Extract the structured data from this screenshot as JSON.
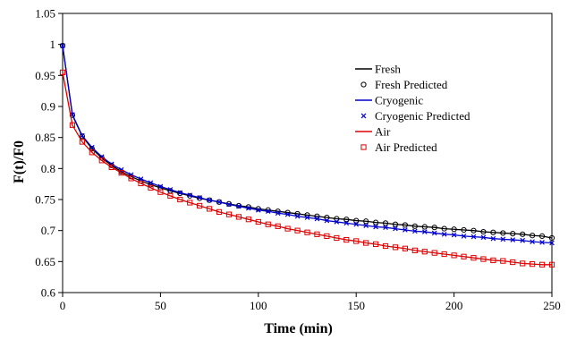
{
  "chart_data": {
    "type": "line",
    "title": "",
    "xlabel": "Time (min)",
    "ylabel": "F(t)/F0",
    "xlim": [
      0,
      250
    ],
    "ylim": [
      0.6,
      1.05
    ],
    "x_ticks": [
      0,
      50,
      100,
      150,
      200,
      250
    ],
    "y_ticks": [
      0.6,
      0.65,
      0.7,
      0.75,
      0.8,
      0.85,
      0.9,
      0.95,
      1.0,
      1.05
    ],
    "x_tick_labels": [
      "0",
      "50",
      "100",
      "150",
      "200",
      "250"
    ],
    "y_tick_labels": [
      "0.6",
      "0.65",
      "0.7",
      "0.75",
      "0.8",
      "0.85",
      "0.9",
      "0.95",
      "1",
      "1.05"
    ],
    "grid": false,
    "legend_position": "upper-right",
    "x": [
      0,
      5,
      10,
      15,
      20,
      25,
      30,
      35,
      40,
      45,
      50,
      55,
      60,
      65,
      70,
      75,
      80,
      85,
      90,
      95,
      100,
      105,
      110,
      115,
      120,
      125,
      130,
      135,
      140,
      145,
      150,
      155,
      160,
      165,
      170,
      175,
      180,
      185,
      190,
      195,
      200,
      205,
      210,
      215,
      220,
      225,
      230,
      235,
      240,
      245,
      250
    ],
    "series": [
      {
        "name": "Fresh",
        "style": "line",
        "color": "#000000",
        "values": [
          0.998,
          0.886,
          0.852,
          0.832,
          0.817,
          0.805,
          0.795,
          0.787,
          0.78,
          0.774,
          0.769,
          0.764,
          0.76,
          0.756,
          0.752,
          0.749,
          0.746,
          0.743,
          0.74,
          0.738,
          0.735,
          0.733,
          0.731,
          0.729,
          0.727,
          0.725,
          0.723,
          0.721,
          0.719,
          0.718,
          0.716,
          0.715,
          0.713,
          0.712,
          0.71,
          0.709,
          0.707,
          0.706,
          0.705,
          0.703,
          0.702,
          0.701,
          0.7,
          0.698,
          0.697,
          0.696,
          0.695,
          0.694,
          0.692,
          0.691,
          0.688
        ]
      },
      {
        "name": "Fresh Predicted",
        "style": "marker-circle",
        "color": "#000000",
        "values": [
          0.998,
          0.886,
          0.852,
          0.832,
          0.817,
          0.805,
          0.795,
          0.787,
          0.78,
          0.774,
          0.769,
          0.764,
          0.76,
          0.756,
          0.752,
          0.749,
          0.746,
          0.743,
          0.74,
          0.738,
          0.735,
          0.733,
          0.731,
          0.729,
          0.727,
          0.725,
          0.723,
          0.721,
          0.719,
          0.718,
          0.716,
          0.715,
          0.713,
          0.712,
          0.71,
          0.709,
          0.707,
          0.706,
          0.705,
          0.703,
          0.702,
          0.701,
          0.7,
          0.698,
          0.697,
          0.696,
          0.695,
          0.694,
          0.692,
          0.691,
          0.688
        ]
      },
      {
        "name": "Cryogenic",
        "style": "line",
        "color": "#0000cc",
        "values": [
          0.998,
          0.887,
          0.853,
          0.834,
          0.819,
          0.807,
          0.798,
          0.79,
          0.783,
          0.777,
          0.771,
          0.766,
          0.761,
          0.757,
          0.753,
          0.749,
          0.746,
          0.742,
          0.739,
          0.736,
          0.733,
          0.731,
          0.728,
          0.726,
          0.723,
          0.721,
          0.719,
          0.716,
          0.714,
          0.712,
          0.71,
          0.708,
          0.706,
          0.705,
          0.703,
          0.701,
          0.699,
          0.698,
          0.696,
          0.694,
          0.693,
          0.691,
          0.69,
          0.689,
          0.687,
          0.686,
          0.685,
          0.684,
          0.682,
          0.681,
          0.68
        ]
      },
      {
        "name": "Cryogenic Predicted",
        "style": "marker-x",
        "color": "#0000cc",
        "values": [
          0.998,
          0.887,
          0.853,
          0.834,
          0.819,
          0.807,
          0.798,
          0.79,
          0.783,
          0.777,
          0.771,
          0.766,
          0.761,
          0.757,
          0.753,
          0.749,
          0.746,
          0.742,
          0.739,
          0.736,
          0.733,
          0.731,
          0.728,
          0.726,
          0.723,
          0.721,
          0.719,
          0.716,
          0.714,
          0.712,
          0.71,
          0.708,
          0.706,
          0.705,
          0.703,
          0.701,
          0.699,
          0.698,
          0.696,
          0.694,
          0.693,
          0.691,
          0.69,
          0.689,
          0.687,
          0.686,
          0.685,
          0.684,
          0.682,
          0.681,
          0.68
        ]
      },
      {
        "name": "Air",
        "style": "line",
        "color": "#dd0000",
        "values": [
          0.955,
          0.87,
          0.843,
          0.826,
          0.813,
          0.802,
          0.793,
          0.784,
          0.776,
          0.769,
          0.762,
          0.756,
          0.75,
          0.745,
          0.74,
          0.735,
          0.73,
          0.726,
          0.722,
          0.718,
          0.714,
          0.71,
          0.707,
          0.703,
          0.7,
          0.697,
          0.694,
          0.691,
          0.688,
          0.685,
          0.683,
          0.68,
          0.678,
          0.675,
          0.673,
          0.671,
          0.668,
          0.666,
          0.664,
          0.662,
          0.66,
          0.658,
          0.656,
          0.654,
          0.652,
          0.651,
          0.649,
          0.647,
          0.646,
          0.645,
          0.645
        ]
      },
      {
        "name": "Air Predicted",
        "style": "marker-square",
        "color": "#dd0000",
        "values": [
          0.955,
          0.87,
          0.843,
          0.826,
          0.813,
          0.802,
          0.793,
          0.784,
          0.776,
          0.769,
          0.762,
          0.756,
          0.75,
          0.745,
          0.74,
          0.735,
          0.73,
          0.726,
          0.722,
          0.718,
          0.714,
          0.71,
          0.707,
          0.703,
          0.7,
          0.697,
          0.694,
          0.691,
          0.688,
          0.685,
          0.683,
          0.68,
          0.678,
          0.675,
          0.673,
          0.671,
          0.668,
          0.666,
          0.664,
          0.662,
          0.66,
          0.658,
          0.656,
          0.654,
          0.652,
          0.651,
          0.649,
          0.647,
          0.646,
          0.645,
          0.645
        ]
      }
    ]
  }
}
